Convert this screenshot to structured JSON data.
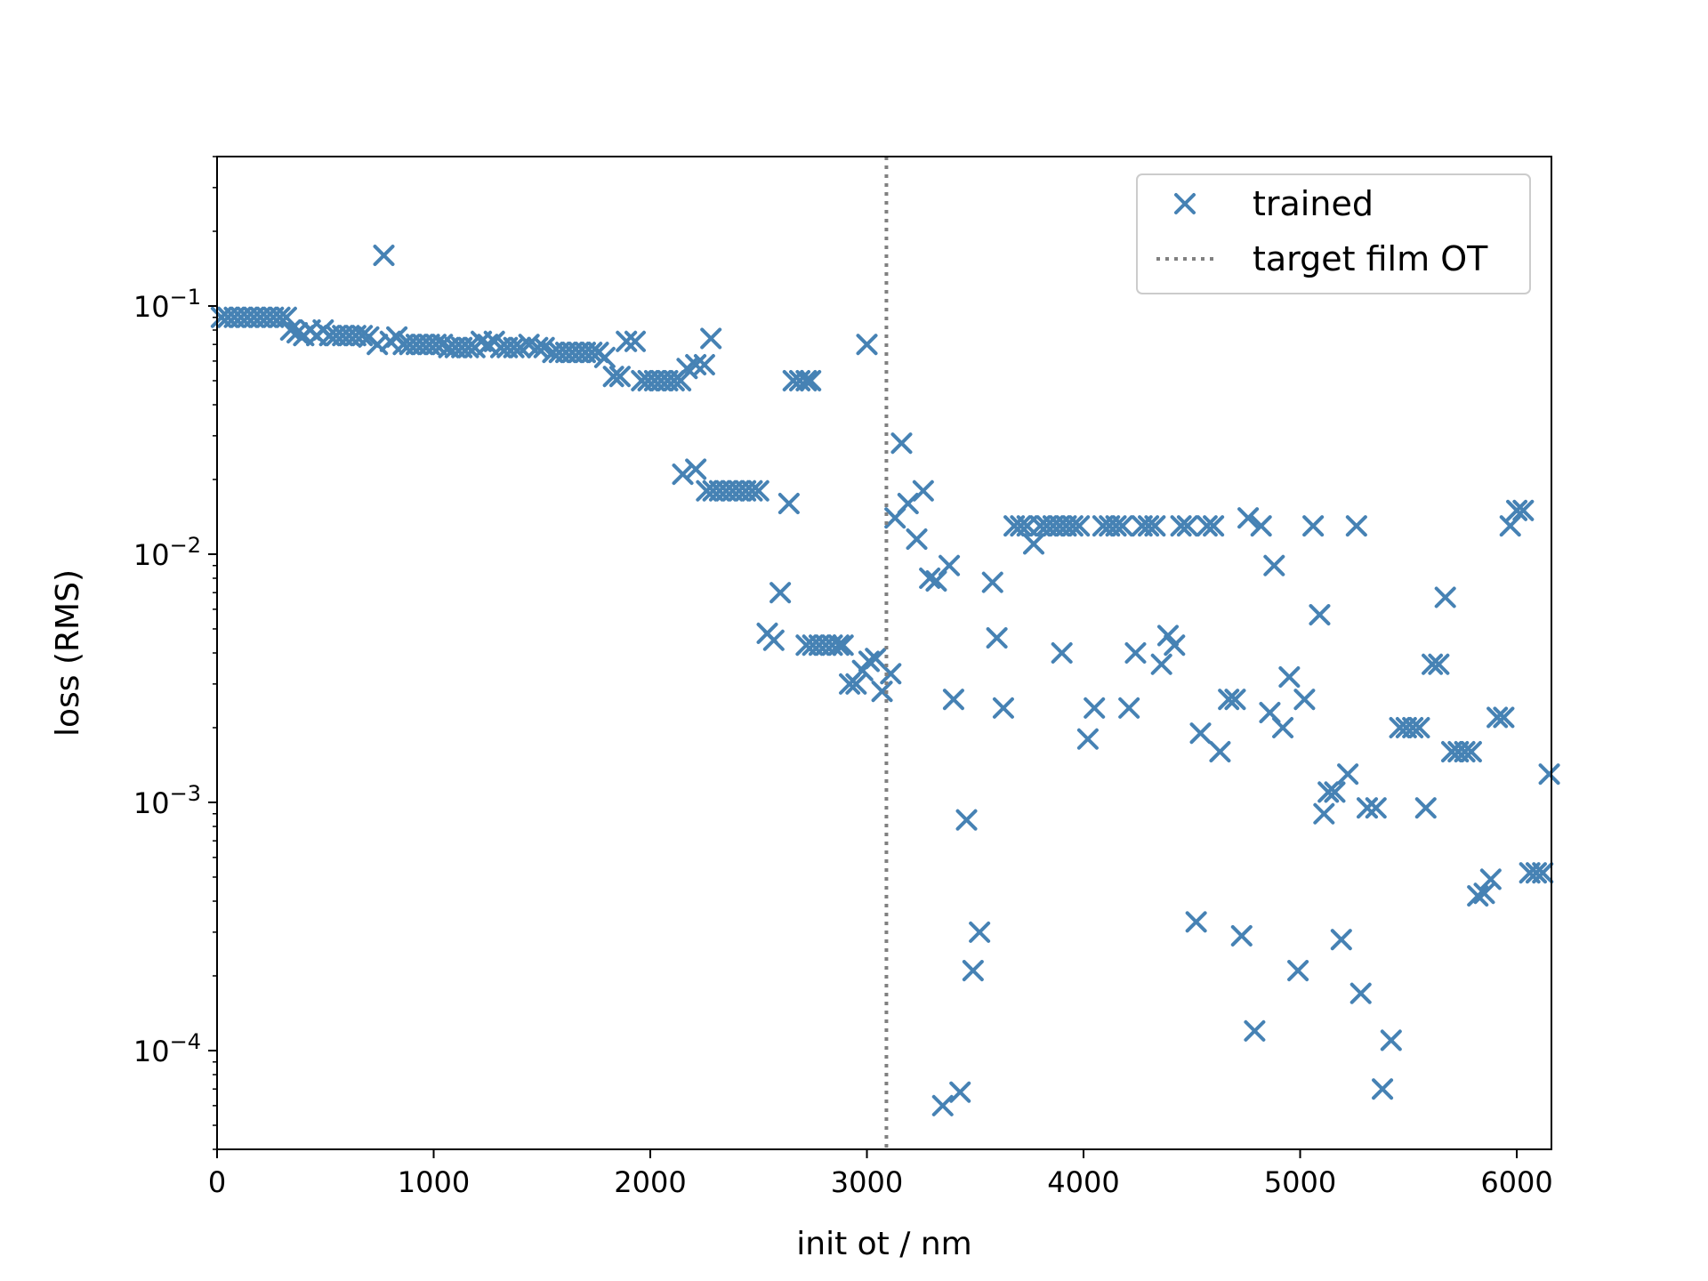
{
  "chart_data": {
    "type": "scatter",
    "xlabel": "init ot / nm",
    "ylabel": "loss (RMS)",
    "xlim": [
      0,
      6160
    ],
    "ylim": [
      4e-05,
      0.4
    ],
    "yscale": "log",
    "xticks": [
      0,
      1000,
      2000,
      3000,
      4000,
      5000,
      6000
    ],
    "xtick_labels": [
      "0",
      "1000",
      "2000",
      "3000",
      "4000",
      "5000",
      "6000"
    ],
    "yticks": [
      0.1,
      0.01,
      0.001,
      0.0001
    ],
    "ytick_labels": [
      {
        "base": "10",
        "exp": "−1"
      },
      {
        "base": "10",
        "exp": "−2"
      },
      {
        "base": "10",
        "exp": "−3"
      },
      {
        "base": "10",
        "exp": "−4"
      }
    ],
    "grid": false,
    "legend": {
      "position": "top-right",
      "entries": [
        {
          "label": "trained",
          "marker": "x",
          "color": "#4682b4"
        },
        {
          "label": "target film OT",
          "line": "dotted",
          "color": "#808080"
        }
      ]
    },
    "vline": {
      "x": 3090,
      "color": "#808080",
      "style": "dotted"
    },
    "series": [
      {
        "name": "trained",
        "marker": "x",
        "color": "#4682b4",
        "points": [
          [
            20,
            0.09
          ],
          [
            50,
            0.09
          ],
          [
            80,
            0.09
          ],
          [
            110,
            0.09
          ],
          [
            140,
            0.09
          ],
          [
            170,
            0.09
          ],
          [
            200,
            0.09
          ],
          [
            230,
            0.09
          ],
          [
            260,
            0.09
          ],
          [
            290,
            0.09
          ],
          [
            320,
            0.09
          ],
          [
            340,
            0.08
          ],
          [
            370,
            0.078
          ],
          [
            400,
            0.076
          ],
          [
            430,
            0.08
          ],
          [
            460,
            0.076
          ],
          [
            490,
            0.08
          ],
          [
            520,
            0.076
          ],
          [
            550,
            0.076
          ],
          [
            580,
            0.076
          ],
          [
            610,
            0.076
          ],
          [
            640,
            0.076
          ],
          [
            670,
            0.076
          ],
          [
            700,
            0.075
          ],
          [
            740,
            0.07
          ],
          [
            770,
            0.16
          ],
          [
            800,
            0.072
          ],
          [
            830,
            0.075
          ],
          [
            860,
            0.07
          ],
          [
            890,
            0.07
          ],
          [
            920,
            0.07
          ],
          [
            950,
            0.07
          ],
          [
            980,
            0.07
          ],
          [
            1010,
            0.07
          ],
          [
            1040,
            0.07
          ],
          [
            1070,
            0.068
          ],
          [
            1100,
            0.068
          ],
          [
            1130,
            0.068
          ],
          [
            1160,
            0.068
          ],
          [
            1190,
            0.068
          ],
          [
            1220,
            0.072
          ],
          [
            1250,
            0.07
          ],
          [
            1280,
            0.072
          ],
          [
            1310,
            0.068
          ],
          [
            1340,
            0.068
          ],
          [
            1370,
            0.068
          ],
          [
            1400,
            0.068
          ],
          [
            1440,
            0.07
          ],
          [
            1480,
            0.068
          ],
          [
            1510,
            0.068
          ],
          [
            1550,
            0.065
          ],
          [
            1580,
            0.065
          ],
          [
            1610,
            0.065
          ],
          [
            1640,
            0.065
          ],
          [
            1670,
            0.065
          ],
          [
            1700,
            0.065
          ],
          [
            1730,
            0.065
          ],
          [
            1760,
            0.065
          ],
          [
            1790,
            0.062
          ],
          [
            1830,
            0.052
          ],
          [
            1860,
            0.052
          ],
          [
            1890,
            0.072
          ],
          [
            1930,
            0.072
          ],
          [
            1960,
            0.05
          ],
          [
            1990,
            0.05
          ],
          [
            2020,
            0.05
          ],
          [
            2050,
            0.05
          ],
          [
            2080,
            0.05
          ],
          [
            2110,
            0.05
          ],
          [
            2140,
            0.05
          ],
          [
            2170,
            0.056
          ],
          [
            2210,
            0.058
          ],
          [
            2250,
            0.058
          ],
          [
            2280,
            0.074
          ],
          [
            2150,
            0.021
          ],
          [
            2210,
            0.022
          ],
          [
            2260,
            0.018
          ],
          [
            2290,
            0.018
          ],
          [
            2320,
            0.018
          ],
          [
            2350,
            0.018
          ],
          [
            2380,
            0.018
          ],
          [
            2410,
            0.018
          ],
          [
            2440,
            0.018
          ],
          [
            2470,
            0.018
          ],
          [
            2500,
            0.018
          ],
          [
            2540,
            0.0048
          ],
          [
            2570,
            0.0045
          ],
          [
            2600,
            0.007
          ],
          [
            2640,
            0.016
          ],
          [
            2660,
            0.05
          ],
          [
            2690,
            0.05
          ],
          [
            2720,
            0.05
          ],
          [
            2740,
            0.05
          ],
          [
            2720,
            0.0043
          ],
          [
            2750,
            0.0043
          ],
          [
            2780,
            0.0043
          ],
          [
            2810,
            0.0043
          ],
          [
            2840,
            0.0043
          ],
          [
            2870,
            0.0043
          ],
          [
            2890,
            0.0043
          ],
          [
            2920,
            0.003
          ],
          [
            2950,
            0.003
          ],
          [
            2980,
            0.0034
          ],
          [
            3010,
            0.0037
          ],
          [
            3040,
            0.0038
          ],
          [
            3070,
            0.0028
          ],
          [
            3110,
            0.0033
          ],
          [
            3000,
            0.07
          ],
          [
            3130,
            0.014
          ],
          [
            3160,
            0.028
          ],
          [
            3190,
            0.016
          ],
          [
            3230,
            0.0115
          ],
          [
            3260,
            0.018
          ],
          [
            3290,
            0.008
          ],
          [
            3320,
            0.0078
          ],
          [
            3350,
            6e-05
          ],
          [
            3380,
            0.009
          ],
          [
            3400,
            0.0026
          ],
          [
            3430,
            6.8e-05
          ],
          [
            3460,
            0.00085
          ],
          [
            3490,
            0.00021
          ],
          [
            3520,
            0.0003
          ],
          [
            3580,
            0.0077
          ],
          [
            3600,
            0.0046
          ],
          [
            3630,
            0.0024
          ],
          [
            3680,
            0.013
          ],
          [
            3710,
            0.013
          ],
          [
            3740,
            0.013
          ],
          [
            3770,
            0.011
          ],
          [
            3800,
            0.013
          ],
          [
            3830,
            0.013
          ],
          [
            3860,
            0.013
          ],
          [
            3890,
            0.013
          ],
          [
            3920,
            0.013
          ],
          [
            3950,
            0.013
          ],
          [
            3980,
            0.013
          ],
          [
            3900,
            0.004
          ],
          [
            4020,
            0.0018
          ],
          [
            4050,
            0.0024
          ],
          [
            4090,
            0.013
          ],
          [
            4120,
            0.013
          ],
          [
            4150,
            0.013
          ],
          [
            4180,
            0.013
          ],
          [
            4210,
            0.0024
          ],
          [
            4240,
            0.004
          ],
          [
            4270,
            0.013
          ],
          [
            4300,
            0.013
          ],
          [
            4330,
            0.013
          ],
          [
            4360,
            0.0036
          ],
          [
            4390,
            0.0047
          ],
          [
            4420,
            0.0043
          ],
          [
            4450,
            0.013
          ],
          [
            4480,
            0.013
          ],
          [
            4520,
            0.00033
          ],
          [
            4540,
            0.0019
          ],
          [
            4570,
            0.013
          ],
          [
            4600,
            0.013
          ],
          [
            4630,
            0.0016
          ],
          [
            4670,
            0.0026
          ],
          [
            4700,
            0.0026
          ],
          [
            4730,
            0.00029
          ],
          [
            4760,
            0.014
          ],
          [
            4790,
            0.00012
          ],
          [
            4820,
            0.013
          ],
          [
            4860,
            0.0023
          ],
          [
            4880,
            0.009
          ],
          [
            4920,
            0.002
          ],
          [
            4950,
            0.0032
          ],
          [
            4990,
            0.00021
          ],
          [
            5020,
            0.0026
          ],
          [
            5060,
            0.013
          ],
          [
            5090,
            0.0057
          ],
          [
            5110,
            0.0009
          ],
          [
            5130,
            0.0011
          ],
          [
            5160,
            0.0011
          ],
          [
            5190,
            0.00028
          ],
          [
            5220,
            0.0013
          ],
          [
            5260,
            0.013
          ],
          [
            5280,
            0.00017
          ],
          [
            5310,
            0.00095
          ],
          [
            5350,
            0.00095
          ],
          [
            5380,
            7e-05
          ],
          [
            5420,
            0.00011
          ],
          [
            5460,
            0.002
          ],
          [
            5490,
            0.002
          ],
          [
            5520,
            0.002
          ],
          [
            5550,
            0.002
          ],
          [
            5580,
            0.00095
          ],
          [
            5610,
            0.0036
          ],
          [
            5640,
            0.0036
          ],
          [
            5670,
            0.0067
          ],
          [
            5700,
            0.0016
          ],
          [
            5730,
            0.0016
          ],
          [
            5760,
            0.0016
          ],
          [
            5790,
            0.0016
          ],
          [
            5820,
            0.00042
          ],
          [
            5850,
            0.00043
          ],
          [
            5880,
            0.00049
          ],
          [
            5910,
            0.0022
          ],
          [
            5940,
            0.0022
          ],
          [
            5970,
            0.013
          ],
          [
            6000,
            0.015
          ],
          [
            6030,
            0.015
          ],
          [
            6060,
            0.00052
          ],
          [
            6090,
            0.00052
          ],
          [
            6120,
            0.00052
          ],
          [
            6150,
            0.0013
          ]
        ]
      }
    ]
  }
}
